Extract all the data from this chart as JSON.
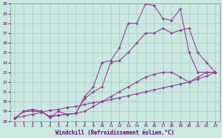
{
  "xlabel": "Windchill (Refroidissement éolien,°C)",
  "xlim": [
    -0.5,
    23.5
  ],
  "ylim": [
    18,
    30
  ],
  "xticks": [
    0,
    1,
    2,
    3,
    4,
    5,
    6,
    7,
    8,
    9,
    10,
    11,
    12,
    13,
    14,
    15,
    16,
    17,
    18,
    19,
    20,
    21,
    22,
    23
  ],
  "yticks": [
    18,
    19,
    20,
    21,
    22,
    23,
    24,
    25,
    26,
    27,
    28,
    29,
    30
  ],
  "bg_color": "#c8e8e0",
  "grid_color": "#aabbbb",
  "line_color": "#993399",
  "lines": [
    {
      "x": [
        0,
        1,
        2,
        3,
        4,
        5,
        6,
        7,
        8,
        9,
        10,
        11,
        12,
        13,
        14,
        15,
        16,
        17,
        18,
        19,
        20,
        21,
        22,
        23
      ],
      "y": [
        18.3,
        18.5,
        18.7,
        18.9,
        19.1,
        19.2,
        19.4,
        19.5,
        19.7,
        19.9,
        20.0,
        20.2,
        20.4,
        20.6,
        20.8,
        21.0,
        21.2,
        21.4,
        21.6,
        21.8,
        22.0,
        22.3,
        22.6,
        23.0
      ]
    },
    {
      "x": [
        0,
        1,
        2,
        3,
        4,
        5,
        6,
        7,
        8,
        9,
        10,
        11,
        12,
        13,
        14,
        15,
        16,
        17,
        18,
        19,
        20,
        21,
        22,
        23
      ],
      "y": [
        18.3,
        19.0,
        19.0,
        19.0,
        18.5,
        18.6,
        18.7,
        18.8,
        19.0,
        19.5,
        20.0,
        20.5,
        21.0,
        21.5,
        22.0,
        22.5,
        22.8,
        23.0,
        23.0,
        22.5,
        22.0,
        22.5,
        23.0,
        23.0
      ]
    },
    {
      "x": [
        0,
        1,
        2,
        3,
        4,
        5,
        6,
        7,
        8,
        9,
        10,
        11,
        12,
        13,
        14,
        15,
        16,
        17,
        18,
        19,
        20,
        21,
        22,
        23
      ],
      "y": [
        18.3,
        19.0,
        19.2,
        19.0,
        18.4,
        18.6,
        18.7,
        18.8,
        20.3,
        21.0,
        21.5,
        24.0,
        24.2,
        25.0,
        26.0,
        27.0,
        27.0,
        27.5,
        27.0,
        27.3,
        27.5,
        25.0,
        24.0,
        23.0
      ]
    },
    {
      "x": [
        0,
        1,
        2,
        3,
        4,
        5,
        6,
        7,
        8,
        9,
        10,
        11,
        12,
        13,
        14,
        15,
        16,
        17,
        18,
        19,
        20,
        21,
        22,
        23
      ],
      "y": [
        18.3,
        19.0,
        19.2,
        19.0,
        18.4,
        19.0,
        18.7,
        18.8,
        20.5,
        21.5,
        24.0,
        24.2,
        25.5,
        28.0,
        28.0,
        30.0,
        29.8,
        28.5,
        28.3,
        29.5,
        25.0,
        23.0,
        23.0,
        23.0
      ]
    }
  ]
}
